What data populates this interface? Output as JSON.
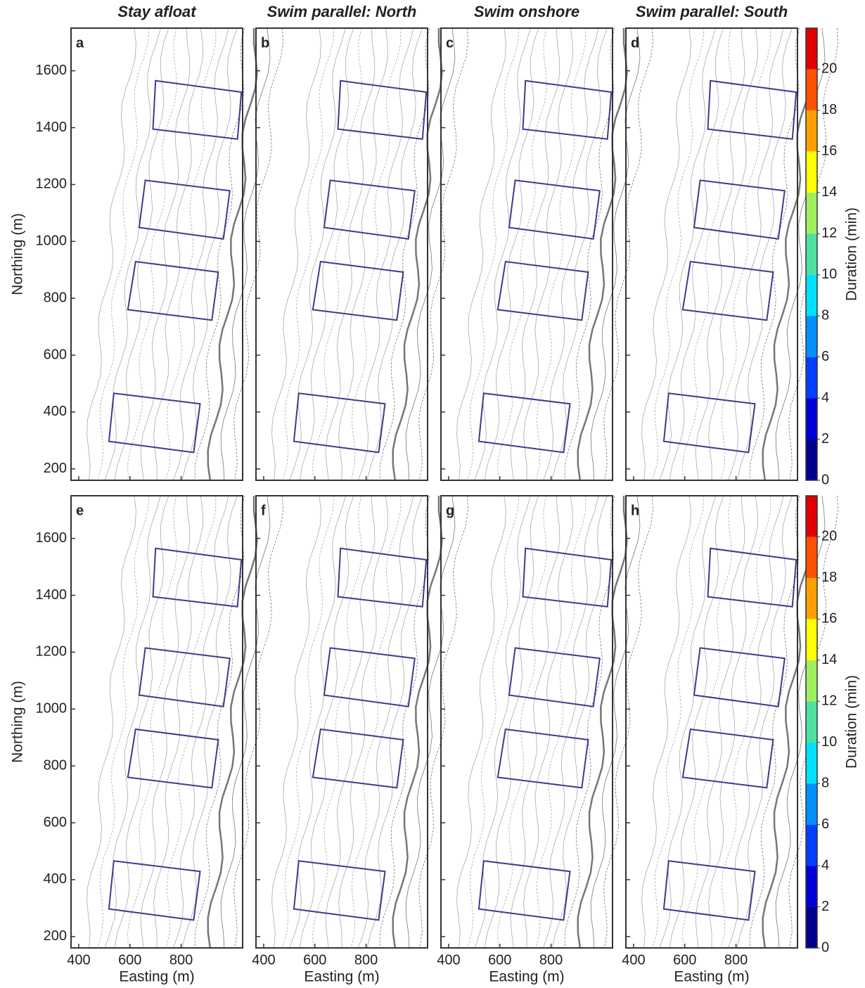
{
  "chart_data": {
    "type": "contour",
    "columns": [
      "Stay afloat",
      "Swim parallel: North",
      "Swim onshore",
      "Swim parallel: South"
    ],
    "panels": [
      "a",
      "b",
      "c",
      "d",
      "e",
      "f",
      "g",
      "h"
    ],
    "xlabel": "Easting (m)",
    "ylabel": "Northing (m)",
    "xlim": [
      370,
      1040
    ],
    "ylim": [
      160,
      1750
    ],
    "xticks": [
      400,
      600,
      800
    ],
    "yticks": [
      200,
      400,
      600,
      800,
      1000,
      1200,
      1400,
      1600
    ],
    "colorbar": {
      "label": "Duration (min)",
      "lim": [
        0,
        22
      ],
      "ticks": [
        0,
        2,
        4,
        6,
        8,
        10,
        12,
        14,
        16,
        18,
        20
      ],
      "colors": [
        "#00008f",
        "#0000d8",
        "#0040ff",
        "#0090ff",
        "#00e0ff",
        "#50e0a0",
        "#a0f060",
        "#ffff00",
        "#ffa000",
        "#ff5000",
        "#e00000"
      ]
    },
    "region_color": "#3c3c8c",
    "regions": [
      [
        [
          700,
          1565
        ],
        [
          1035,
          1525
        ],
        [
          1020,
          1360
        ],
        [
          690,
          1395
        ]
      ],
      [
        [
          660,
          1215
        ],
        [
          990,
          1178
        ],
        [
          965,
          1009
        ],
        [
          636,
          1049
        ]
      ],
      [
        [
          622,
          929
        ],
        [
          945,
          892
        ],
        [
          920,
          723
        ],
        [
          592,
          760
        ]
      ],
      [
        [
          537,
          466
        ],
        [
          874,
          429
        ],
        [
          849,
          258
        ],
        [
          518,
          297
        ]
      ]
    ]
  }
}
